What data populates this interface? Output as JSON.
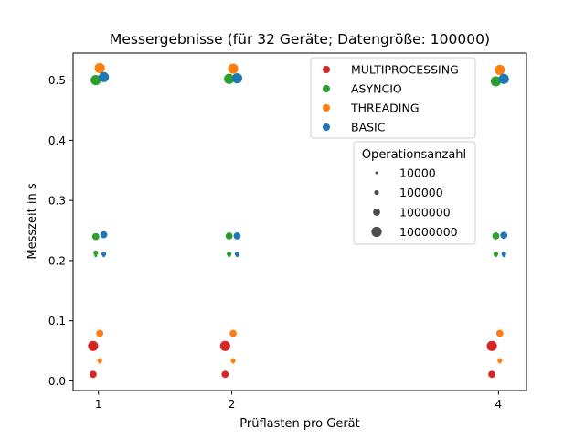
{
  "chart_data": {
    "type": "scatter",
    "title": "Messergebnisse (für 32 Geräte; Datengröße: 100000)",
    "xlabel": "Prüflasten pro Gerät",
    "ylabel": "Messzeit in s",
    "x_ticks": [
      1,
      2,
      4
    ],
    "x_tick_labels": [
      "1",
      "2",
      "4"
    ],
    "y_ticks": [
      0.0,
      0.1,
      0.2,
      0.3,
      0.4,
      0.5
    ],
    "y_tick_labels": [
      "0.0",
      "0.1",
      "0.2",
      "0.3",
      "0.4",
      "0.5"
    ],
    "xlim": [
      0.81,
      4.21
    ],
    "ylim": [
      -0.016,
      0.545
    ],
    "grid": false,
    "legend_placement": "top-right",
    "series": [
      {
        "name": "MULTIPROCESSING",
        "color": "#d62728",
        "points": [
          {
            "x": 0.96,
            "y": 0.012,
            "ops": 10000
          },
          {
            "x": 0.96,
            "y": 0.01,
            "ops": 100000
          },
          {
            "x": 0.96,
            "y": 0.011,
            "ops": 1000000
          },
          {
            "x": 0.96,
            "y": 0.058,
            "ops": 10000000
          },
          {
            "x": 1.95,
            "y": 0.012,
            "ops": 10000
          },
          {
            "x": 1.95,
            "y": 0.01,
            "ops": 100000
          },
          {
            "x": 1.95,
            "y": 0.011,
            "ops": 1000000
          },
          {
            "x": 1.95,
            "y": 0.058,
            "ops": 10000000
          },
          {
            "x": 3.95,
            "y": 0.012,
            "ops": 10000
          },
          {
            "x": 3.95,
            "y": 0.01,
            "ops": 100000
          },
          {
            "x": 3.95,
            "y": 0.011,
            "ops": 1000000
          },
          {
            "x": 3.95,
            "y": 0.058,
            "ops": 10000000
          }
        ]
      },
      {
        "name": "ASYNCIO",
        "color": "#2ca02c",
        "points": [
          {
            "x": 0.98,
            "y": 0.208,
            "ops": 10000
          },
          {
            "x": 0.98,
            "y": 0.213,
            "ops": 100000
          },
          {
            "x": 0.98,
            "y": 0.24,
            "ops": 1000000
          },
          {
            "x": 0.98,
            "y": 0.5,
            "ops": 10000000
          },
          {
            "x": 1.98,
            "y": 0.208,
            "ops": 10000
          },
          {
            "x": 1.98,
            "y": 0.211,
            "ops": 100000
          },
          {
            "x": 1.98,
            "y": 0.241,
            "ops": 1000000
          },
          {
            "x": 1.98,
            "y": 0.502,
            "ops": 10000000
          },
          {
            "x": 3.98,
            "y": 0.208,
            "ops": 10000
          },
          {
            "x": 3.98,
            "y": 0.211,
            "ops": 100000
          },
          {
            "x": 3.98,
            "y": 0.241,
            "ops": 1000000
          },
          {
            "x": 3.98,
            "y": 0.498,
            "ops": 10000000
          }
        ]
      },
      {
        "name": "THREADING",
        "color": "#ff7f0e",
        "points": [
          {
            "x": 1.01,
            "y": 0.031,
            "ops": 10000
          },
          {
            "x": 1.01,
            "y": 0.034,
            "ops": 100000
          },
          {
            "x": 1.01,
            "y": 0.079,
            "ops": 1000000
          },
          {
            "x": 1.01,
            "y": 0.52,
            "ops": 10000000
          },
          {
            "x": 2.01,
            "y": 0.031,
            "ops": 10000
          },
          {
            "x": 2.01,
            "y": 0.034,
            "ops": 100000
          },
          {
            "x": 2.01,
            "y": 0.079,
            "ops": 1000000
          },
          {
            "x": 2.01,
            "y": 0.519,
            "ops": 10000000
          },
          {
            "x": 4.01,
            "y": 0.031,
            "ops": 10000
          },
          {
            "x": 4.01,
            "y": 0.034,
            "ops": 100000
          },
          {
            "x": 4.01,
            "y": 0.079,
            "ops": 1000000
          },
          {
            "x": 4.01,
            "y": 0.517,
            "ops": 10000000
          }
        ]
      },
      {
        "name": "BASIC",
        "color": "#1f77b4",
        "points": [
          {
            "x": 1.04,
            "y": 0.208,
            "ops": 10000
          },
          {
            "x": 1.04,
            "y": 0.211,
            "ops": 100000
          },
          {
            "x": 1.04,
            "y": 0.243,
            "ops": 1000000
          },
          {
            "x": 1.04,
            "y": 0.505,
            "ops": 10000000
          },
          {
            "x": 2.04,
            "y": 0.208,
            "ops": 10000
          },
          {
            "x": 2.04,
            "y": 0.211,
            "ops": 100000
          },
          {
            "x": 2.04,
            "y": 0.241,
            "ops": 1000000
          },
          {
            "x": 2.04,
            "y": 0.503,
            "ops": 10000000
          },
          {
            "x": 4.04,
            "y": 0.208,
            "ops": 10000
          },
          {
            "x": 4.04,
            "y": 0.211,
            "ops": 100000
          },
          {
            "x": 4.04,
            "y": 0.242,
            "ops": 1000000
          },
          {
            "x": 4.04,
            "y": 0.502,
            "ops": 10000000
          }
        ]
      }
    ],
    "legend": {
      "entries": [
        "MULTIPROCESSING",
        "ASYNCIO",
        "THREADING",
        "BASIC"
      ],
      "size_title": "Operationsanzahl",
      "size_entries": [
        {
          "label": "10000",
          "ops": 10000
        },
        {
          "label": "100000",
          "ops": 100000
        },
        {
          "label": "1000000",
          "ops": 1000000
        },
        {
          "label": "10000000",
          "ops": 10000000
        }
      ]
    }
  }
}
